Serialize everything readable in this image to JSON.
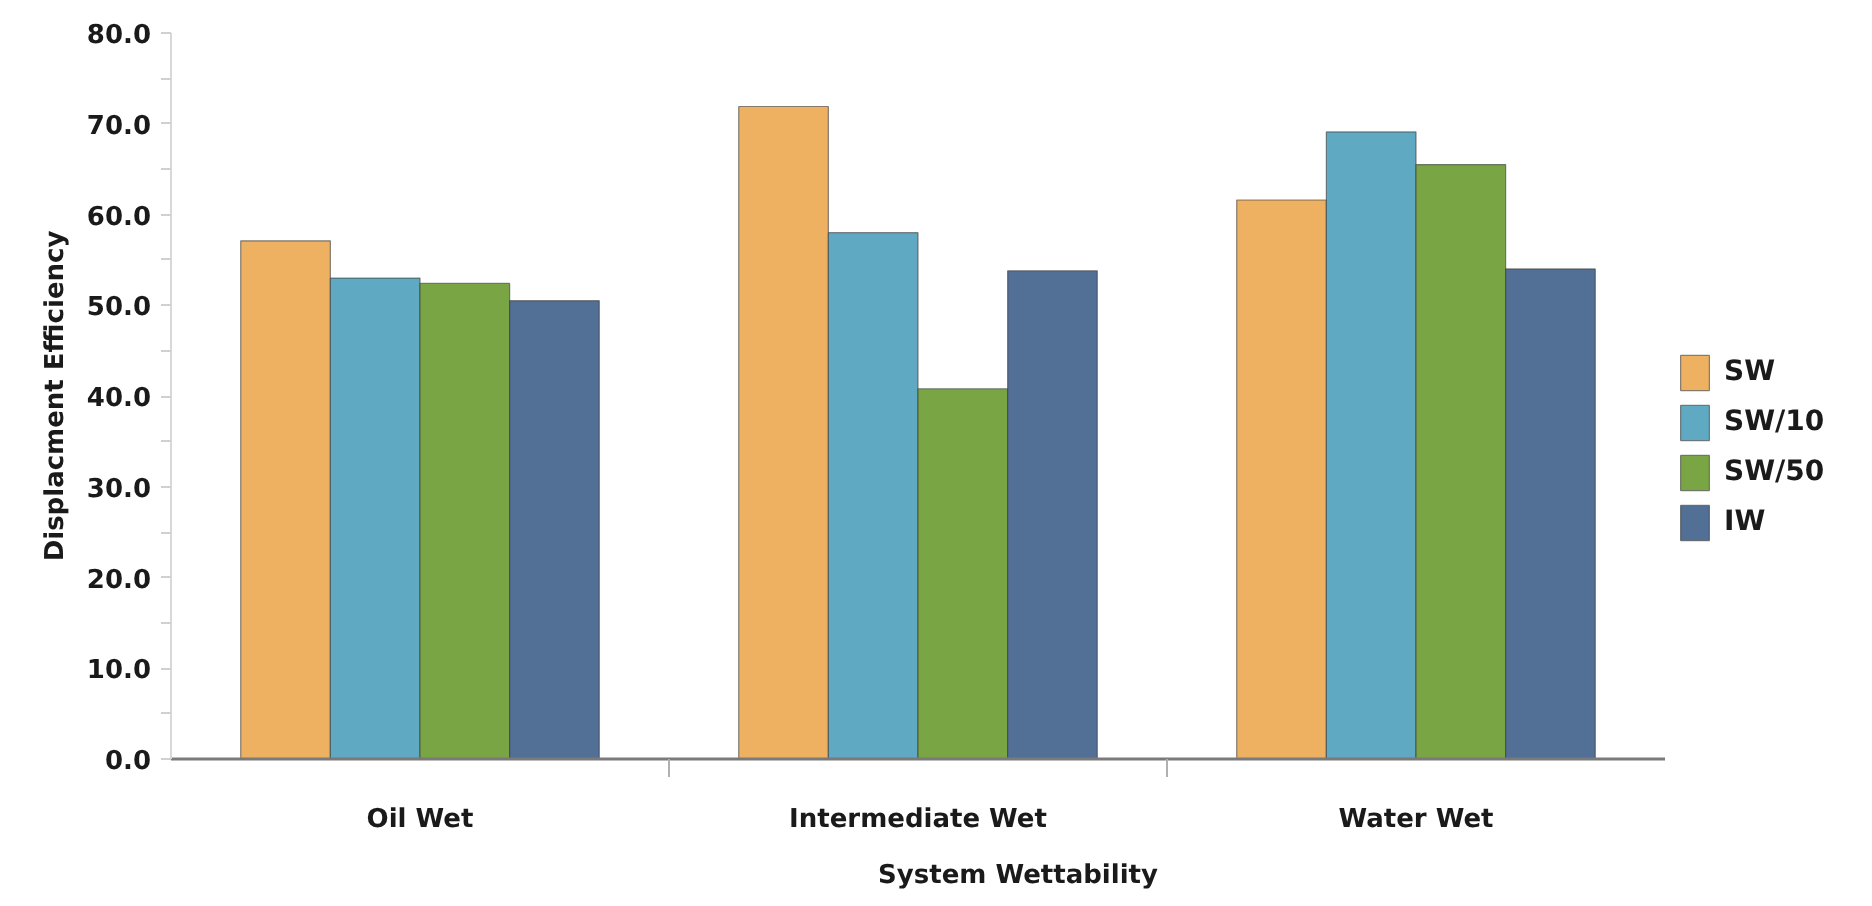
{
  "chart_data": {
    "type": "bar",
    "xlabel": "System Wettability",
    "ylabel": "Displacment Efficiency",
    "categories": [
      "Oil Wet",
      "Intermediate Wet",
      "Water Wet"
    ],
    "series": [
      {
        "name": "SW",
        "color": "#eeb061",
        "values": [
          57.1,
          71.9,
          61.6
        ]
      },
      {
        "name": "SW/10",
        "color": "#5fa9c2",
        "values": [
          53.0,
          58.0,
          69.1
        ]
      },
      {
        "name": "SW/50",
        "color": "#7aa544",
        "values": [
          52.4,
          40.8,
          65.5
        ]
      },
      {
        "name": "IW",
        "color": "#526f96",
        "values": [
          50.5,
          53.8,
          54.0
        ]
      }
    ],
    "ylim": [
      0,
      80
    ],
    "yticks": [
      {
        "value": 0,
        "label": "0.0"
      },
      {
        "value": 5,
        "label": null
      },
      {
        "value": 10,
        "label": "10.0"
      },
      {
        "value": 15,
        "label": null
      },
      {
        "value": 20,
        "label": "20.0"
      },
      {
        "value": 25,
        "label": null
      },
      {
        "value": 30,
        "label": "30.0"
      },
      {
        "value": 35,
        "label": null
      },
      {
        "value": 40,
        "label": "40.0"
      },
      {
        "value": 45,
        "label": null
      },
      {
        "value": 50,
        "label": "50.0"
      },
      {
        "value": 55,
        "label": null
      },
      {
        "value": 60,
        "label": "60.0"
      },
      {
        "value": 65,
        "label": null
      },
      {
        "value": 70,
        "label": "70.0"
      },
      {
        "value": 75,
        "label": null
      },
      {
        "value": 80,
        "label": "80.0"
      }
    ],
    "grid": false,
    "legend": "right"
  }
}
